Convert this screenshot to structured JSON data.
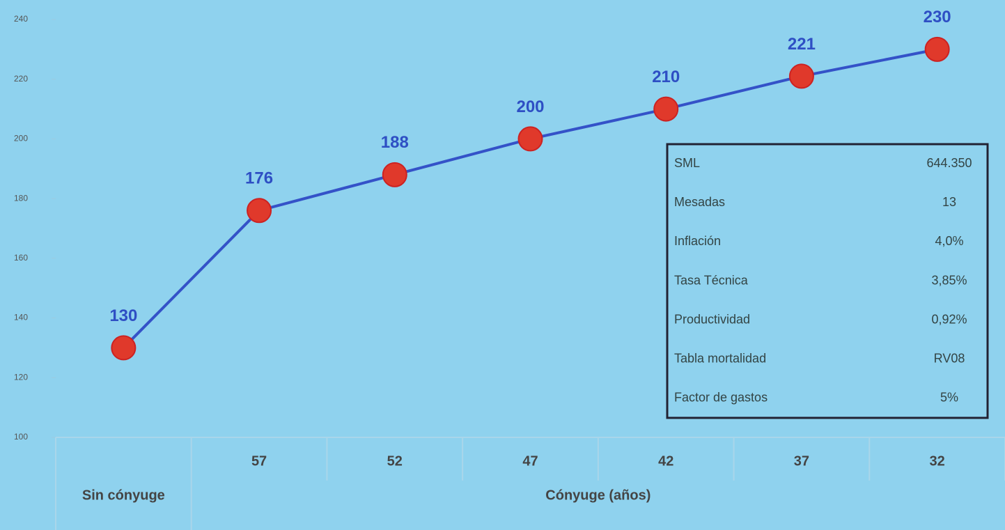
{
  "chart_data": {
    "type": "line",
    "categories": [
      null,
      "57",
      "52",
      "47",
      "42",
      "37",
      "32"
    ],
    "x_group_labels": [
      "Sin cónyuge",
      "Cónyuge (años)"
    ],
    "series": [
      {
        "name": null,
        "color": "#3452c8",
        "marker_color": "#e0392b",
        "values": [
          130,
          176,
          188,
          200,
          210,
          221,
          230
        ]
      }
    ],
    "ylim": [
      100,
      240
    ],
    "yticks": [
      100,
      120,
      140,
      160,
      180,
      200,
      220,
      240
    ],
    "info_table": {
      "rows": [
        [
          "SML",
          "644.350"
        ],
        [
          "Mesadas",
          "13"
        ],
        [
          "Inflación",
          "4,0%"
        ],
        [
          "Tasa Técnica",
          "3,85%"
        ],
        [
          "Productividad",
          "0,92%"
        ],
        [
          "Tabla mortalidad",
          "RV08"
        ],
        [
          "Factor de gastos",
          "5%"
        ]
      ]
    }
  }
}
